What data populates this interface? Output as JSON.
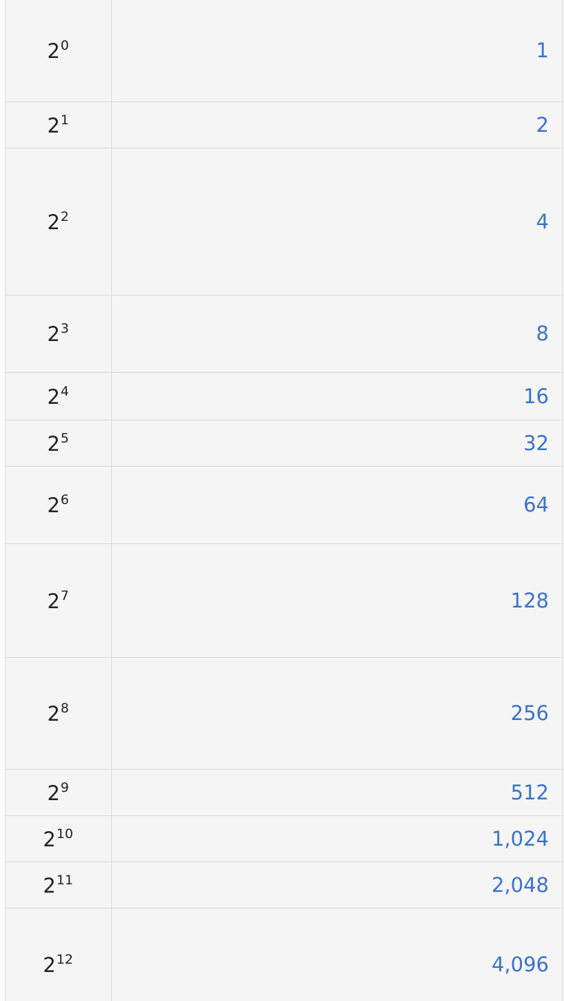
{
  "rows": [
    {
      "base": "2",
      "exponent": "0",
      "value": "1"
    },
    {
      "base": "2",
      "exponent": "1",
      "value": "2"
    },
    {
      "base": "2",
      "exponent": "2",
      "value": "4"
    },
    {
      "base": "2",
      "exponent": "3",
      "value": "8"
    },
    {
      "base": "2",
      "exponent": "4",
      "value": "16"
    },
    {
      "base": "2",
      "exponent": "5",
      "value": "32"
    },
    {
      "base": "2",
      "exponent": "6",
      "value": "64"
    },
    {
      "base": "2",
      "exponent": "7",
      "value": "128"
    },
    {
      "base": "2",
      "exponent": "8",
      "value": "256"
    },
    {
      "base": "2",
      "exponent": "9",
      "value": "512"
    },
    {
      "base": "2",
      "exponent": "10",
      "value": "1,024"
    },
    {
      "base": "2",
      "exponent": "11",
      "value": "2,048"
    },
    {
      "base": "2",
      "exponent": "12",
      "value": "4,096"
    }
  ],
  "colors": {
    "background": "#f5f5f5",
    "border": "#d9d9d9",
    "text": "#222222",
    "value_text": "#3a73c9"
  }
}
